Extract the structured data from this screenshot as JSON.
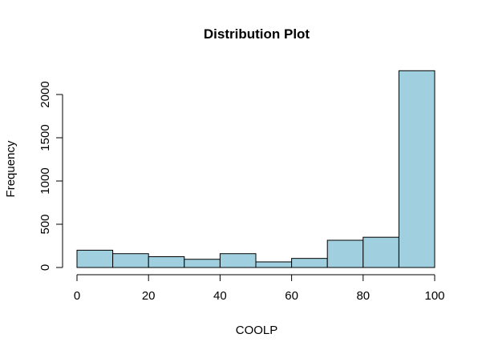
{
  "chart_data": {
    "type": "bar",
    "title": "Distribution Plot",
    "xlabel": "COOLP",
    "ylabel": "Frequency",
    "bins": [
      {
        "from": 0,
        "to": 10,
        "value": 200
      },
      {
        "from": 10,
        "to": 20,
        "value": 160
      },
      {
        "from": 20,
        "to": 30,
        "value": 125
      },
      {
        "from": 30,
        "to": 40,
        "value": 95
      },
      {
        "from": 40,
        "to": 50,
        "value": 160
      },
      {
        "from": 50,
        "to": 60,
        "value": 65
      },
      {
        "from": 60,
        "to": 70,
        "value": 105
      },
      {
        "from": 70,
        "to": 80,
        "value": 315
      },
      {
        "from": 80,
        "to": 90,
        "value": 350
      },
      {
        "from": 90,
        "to": 100,
        "value": 2275
      }
    ],
    "xlim": [
      0,
      100
    ],
    "ylim": [
      0,
      2300
    ],
    "xticks": [
      "0",
      "20",
      "40",
      "60",
      "80",
      "100"
    ],
    "yticks": [
      "0",
      "500",
      "1000",
      "1500",
      "2000"
    ],
    "bar_color": "#a0d0e0",
    "grid": false,
    "legend": "none"
  }
}
